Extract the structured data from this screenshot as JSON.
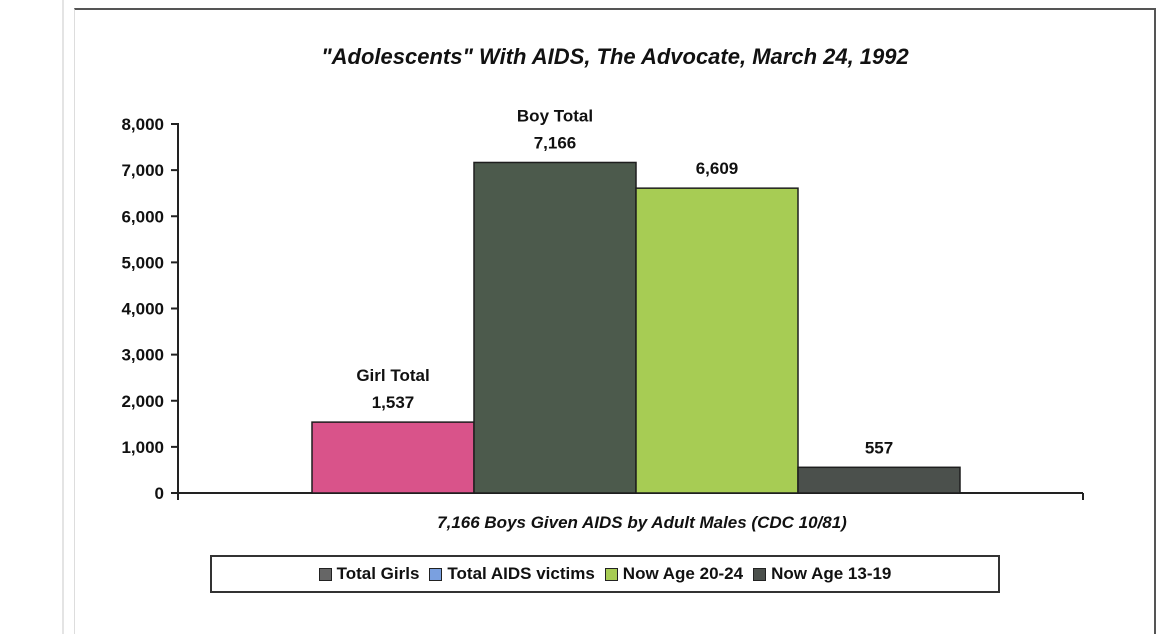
{
  "chart_data": {
    "type": "bar",
    "title": "\"Adolescents\" With AIDS, The Advocate, March 24, 1992",
    "xlabel": "7,166 Boys Given AIDS by Adult Males (CDC 10/81)",
    "ylabel": "",
    "ylim": [
      0,
      8000
    ],
    "yticks": [
      "0",
      "1,000",
      "2,000",
      "3,000",
      "4,000",
      "5,000",
      "6,000",
      "7,000",
      "8,000"
    ],
    "grid": false,
    "legend_position": "bottom",
    "bars": [
      {
        "value": 1537,
        "color": "#d9538a",
        "label_top": "Girl Total",
        "label_value": "1,537"
      },
      {
        "value": 7166,
        "color": "#4c5a4c",
        "label_top": "Boy Total",
        "label_value": "7,166"
      },
      {
        "value": 6609,
        "color": "#a7cc54",
        "label_top": "",
        "label_value": "6,609"
      },
      {
        "value": 557,
        "color": "#4b504c",
        "label_top": "",
        "label_value": "557"
      }
    ],
    "legend": [
      {
        "label": "Total Girls",
        "color": "#666666"
      },
      {
        "label": "Total AIDS victims",
        "color": "#7aa0e0"
      },
      {
        "label": "Now Age 20-24",
        "color": "#a7cc54"
      },
      {
        "label": "Now Age 13-19",
        "color": "#4b504c"
      }
    ]
  }
}
